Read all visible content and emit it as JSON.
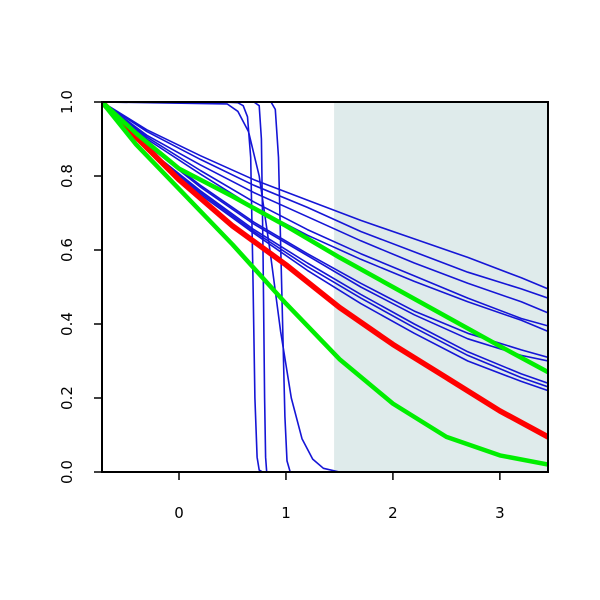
{
  "chart_data": {
    "type": "line",
    "title": "",
    "xlabel": "",
    "ylabel": "",
    "xlim": [
      -0.72,
      3.45
    ],
    "ylim": [
      0.0,
      1.0
    ],
    "x_ticks": [
      0,
      1,
      2,
      3
    ],
    "x_tick_labels": [
      "0",
      "1",
      "2",
      "3"
    ],
    "y_ticks": [
      0.0,
      0.2,
      0.4,
      0.6,
      0.8,
      1.0
    ],
    "y_tick_labels": [
      "0.0",
      "0.2",
      "0.4",
      "0.6",
      "0.8",
      "1.0"
    ],
    "grid": false,
    "shaded_region": {
      "x_start": 1.45,
      "x_end": 3.45,
      "color": "#dfebeb"
    },
    "colors": {
      "blue": "#1515d6",
      "red": "#ff0000",
      "green": "#00ee00",
      "axis": "#000000"
    },
    "series": [
      {
        "color": "blue",
        "width": 1.6,
        "points": [
          [
            -0.72,
            1.0
          ],
          [
            -0.3,
            0.9
          ],
          [
            0.2,
            0.805
          ],
          [
            0.7,
            0.715
          ],
          [
            1.2,
            0.64
          ],
          [
            1.7,
            0.575
          ],
          [
            2.2,
            0.515
          ],
          [
            2.7,
            0.46
          ],
          [
            3.2,
            0.41
          ],
          [
            3.45,
            0.38
          ]
        ]
      },
      {
        "color": "blue",
        "width": 1.6,
        "points": [
          [
            -0.72,
            1.0
          ],
          [
            -0.3,
            0.905
          ],
          [
            0.2,
            0.815
          ],
          [
            0.7,
            0.73
          ],
          [
            1.2,
            0.655
          ],
          [
            1.7,
            0.59
          ],
          [
            2.2,
            0.53
          ],
          [
            2.7,
            0.47
          ],
          [
            3.2,
            0.415
          ],
          [
            3.45,
            0.395
          ]
        ]
      },
      {
        "color": "blue",
        "width": 1.6,
        "points": [
          [
            -0.72,
            1.0
          ],
          [
            -0.3,
            0.91
          ],
          [
            0.2,
            0.83
          ],
          [
            0.7,
            0.755
          ],
          [
            1.2,
            0.69
          ],
          [
            1.7,
            0.625
          ],
          [
            2.2,
            0.565
          ],
          [
            2.7,
            0.51
          ],
          [
            3.2,
            0.46
          ],
          [
            3.45,
            0.43
          ]
        ]
      },
      {
        "color": "blue",
        "width": 1.6,
        "points": [
          [
            -0.72,
            1.0
          ],
          [
            -0.3,
            0.92
          ],
          [
            0.2,
            0.845
          ],
          [
            0.7,
            0.775
          ],
          [
            1.2,
            0.715
          ],
          [
            1.7,
            0.65
          ],
          [
            2.2,
            0.595
          ],
          [
            2.7,
            0.54
          ],
          [
            3.2,
            0.495
          ],
          [
            3.45,
            0.47
          ]
        ]
      },
      {
        "color": "blue",
        "width": 1.6,
        "points": [
          [
            -0.72,
            1.0
          ],
          [
            -0.3,
            0.925
          ],
          [
            0.2,
            0.855
          ],
          [
            0.7,
            0.79
          ],
          [
            1.2,
            0.735
          ],
          [
            1.7,
            0.68
          ],
          [
            2.2,
            0.63
          ],
          [
            2.7,
            0.58
          ],
          [
            3.2,
            0.525
          ],
          [
            3.45,
            0.495
          ]
        ]
      },
      {
        "color": "blue",
        "width": 1.6,
        "points": [
          [
            -0.72,
            1.0
          ],
          [
            -0.3,
            0.885
          ],
          [
            0.2,
            0.77
          ],
          [
            0.7,
            0.67
          ],
          [
            1.2,
            0.585
          ],
          [
            1.7,
            0.5
          ],
          [
            2.2,
            0.425
          ],
          [
            2.7,
            0.36
          ],
          [
            3.2,
            0.315
          ],
          [
            3.45,
            0.3
          ]
        ]
      },
      {
        "color": "blue",
        "width": 1.6,
        "points": [
          [
            -0.72,
            1.0
          ],
          [
            -0.3,
            0.885
          ],
          [
            0.2,
            0.775
          ],
          [
            0.7,
            0.675
          ],
          [
            1.2,
            0.59
          ],
          [
            1.7,
            0.51
          ],
          [
            2.2,
            0.435
          ],
          [
            2.7,
            0.375
          ],
          [
            3.2,
            0.33
          ],
          [
            3.45,
            0.31
          ]
        ]
      },
      {
        "color": "blue",
        "width": 1.6,
        "points": [
          [
            -0.72,
            1.0
          ],
          [
            -0.3,
            0.875
          ],
          [
            0.2,
            0.76
          ],
          [
            0.7,
            0.655
          ],
          [
            1.2,
            0.565
          ],
          [
            1.7,
            0.48
          ],
          [
            2.2,
            0.4
          ],
          [
            2.7,
            0.325
          ],
          [
            3.2,
            0.265
          ],
          [
            3.45,
            0.24
          ]
        ]
      },
      {
        "color": "blue",
        "width": 1.6,
        "points": [
          [
            -0.72,
            1.0
          ],
          [
            -0.3,
            0.875
          ],
          [
            0.2,
            0.755
          ],
          [
            0.7,
            0.65
          ],
          [
            1.2,
            0.555
          ],
          [
            1.7,
            0.47
          ],
          [
            2.2,
            0.39
          ],
          [
            2.7,
            0.315
          ],
          [
            3.2,
            0.255
          ],
          [
            3.45,
            0.23
          ]
        ]
      },
      {
        "color": "blue",
        "width": 1.6,
        "points": [
          [
            -0.72,
            1.0
          ],
          [
            -0.3,
            0.87
          ],
          [
            0.2,
            0.75
          ],
          [
            0.7,
            0.645
          ],
          [
            1.2,
            0.545
          ],
          [
            1.7,
            0.455
          ],
          [
            2.2,
            0.375
          ],
          [
            2.7,
            0.3
          ],
          [
            3.2,
            0.245
          ],
          [
            3.45,
            0.22
          ]
        ]
      },
      {
        "color": "blue",
        "width": 1.6,
        "points": [
          [
            -0.72,
            1.0
          ],
          [
            0.4,
            1.0
          ],
          [
            0.55,
            0.998
          ],
          [
            0.6,
            0.99
          ],
          [
            0.64,
            0.96
          ],
          [
            0.67,
            0.85
          ],
          [
            0.69,
            0.55
          ],
          [
            0.71,
            0.2
          ],
          [
            0.73,
            0.04
          ],
          [
            0.75,
            0.005
          ],
          [
            0.78,
            0.0
          ]
        ]
      },
      {
        "color": "blue",
        "width": 1.6,
        "points": [
          [
            -0.72,
            1.0
          ],
          [
            0.7,
            1.0
          ],
          [
            0.75,
            0.99
          ],
          [
            0.77,
            0.9
          ],
          [
            0.785,
            0.6
          ],
          [
            0.8,
            0.2
          ],
          [
            0.81,
            0.04
          ],
          [
            0.82,
            0.0
          ]
        ]
      },
      {
        "color": "blue",
        "width": 1.6,
        "points": [
          [
            -0.72,
            1.0
          ],
          [
            0.86,
            1.0
          ],
          [
            0.9,
            0.98
          ],
          [
            0.93,
            0.85
          ],
          [
            0.96,
            0.5
          ],
          [
            0.99,
            0.15
          ],
          [
            1.01,
            0.03
          ],
          [
            1.04,
            0.0
          ]
        ]
      },
      {
        "color": "blue",
        "width": 1.6,
        "points": [
          [
            -0.72,
            1.0
          ],
          [
            0.45,
            0.995
          ],
          [
            0.55,
            0.975
          ],
          [
            0.65,
            0.92
          ],
          [
            0.75,
            0.8
          ],
          [
            0.85,
            0.6
          ],
          [
            0.95,
            0.38
          ],
          [
            1.05,
            0.2
          ],
          [
            1.15,
            0.09
          ],
          [
            1.25,
            0.035
          ],
          [
            1.35,
            0.01
          ],
          [
            1.5,
            0.0
          ]
        ]
      },
      {
        "color": "red",
        "width": 5.5,
        "points": [
          [
            -0.72,
            1.0
          ],
          [
            -0.4,
            0.905
          ],
          [
            0.0,
            0.79
          ],
          [
            0.5,
            0.665
          ],
          [
            1.0,
            0.56
          ],
          [
            1.5,
            0.445
          ],
          [
            2.0,
            0.345
          ],
          [
            2.5,
            0.255
          ],
          [
            3.0,
            0.165
          ],
          [
            3.45,
            0.095
          ]
        ]
      },
      {
        "color": "green",
        "width": 4.5,
        "points": [
          [
            -0.72,
            1.0
          ],
          [
            -0.4,
            0.915
          ],
          [
            0.0,
            0.82
          ],
          [
            0.5,
            0.745
          ],
          [
            1.0,
            0.665
          ],
          [
            1.5,
            0.58
          ],
          [
            2.0,
            0.5
          ],
          [
            2.5,
            0.42
          ],
          [
            3.0,
            0.34
          ],
          [
            3.45,
            0.27
          ]
        ]
      },
      {
        "color": "green",
        "width": 4.5,
        "points": [
          [
            -0.72,
            1.0
          ],
          [
            -0.4,
            0.885
          ],
          [
            0.0,
            0.765
          ],
          [
            0.5,
            0.615
          ],
          [
            1.0,
            0.455
          ],
          [
            1.5,
            0.305
          ],
          [
            2.0,
            0.185
          ],
          [
            2.5,
            0.095
          ],
          [
            3.0,
            0.045
          ],
          [
            3.45,
            0.02
          ]
        ]
      }
    ]
  }
}
